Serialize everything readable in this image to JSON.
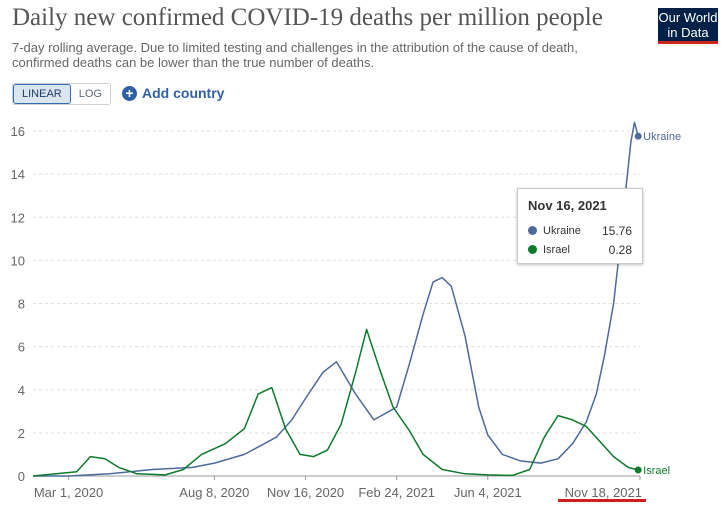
{
  "header": {
    "title": "Daily new confirmed COVID-19 deaths per million people",
    "subtitle": "7-day rolling average. Due to limited testing and challenges in the attribution of the cause of death, confirmed deaths can be lower than the true number of deaths.",
    "logo_line1": "Our World",
    "logo_line2": "in Data"
  },
  "controls": {
    "linear_label": "LINEAR",
    "log_label": "LOG",
    "active_scale": "LINEAR",
    "add_country_label": "Add country"
  },
  "tooltip": {
    "date": "Nov 16, 2021",
    "rows": [
      {
        "name": "Ukraine",
        "value": "15.76"
      },
      {
        "name": "Israel",
        "value": "0.28"
      }
    ]
  },
  "colors": {
    "ukraine": "#4c6a9c",
    "israel": "#0e7a2c",
    "highlight_underline": "#d31c1c"
  },
  "chart_data": {
    "type": "line",
    "title": "Daily new confirmed COVID-19 deaths per million people",
    "xlabel": "",
    "ylabel": "",
    "ylim": [
      0,
      16
    ],
    "yticks": [
      0,
      2,
      4,
      6,
      8,
      10,
      12,
      14,
      16
    ],
    "x_tick_labels": [
      "Mar 1, 2020",
      "Aug 8, 2020",
      "Nov 16, 2020",
      "Feb 24, 2021",
      "Jun 4, 2021",
      "Nov 18, 2021"
    ],
    "x_tick_dates": [
      "2020-03-01",
      "2020-08-08",
      "2020-11-16",
      "2021-02-24",
      "2021-06-04",
      "2021-11-18"
    ],
    "x_range": [
      "2020-01-22",
      "2021-11-18"
    ],
    "grid": "horizontal dashed",
    "legend": "line end labels",
    "series": [
      {
        "name": "Ukraine",
        "color": "#4c6a9c",
        "x": [
          "2020-01-22",
          "2020-03-01",
          "2020-04-15",
          "2020-06-01",
          "2020-07-15",
          "2020-08-08",
          "2020-09-10",
          "2020-10-15",
          "2020-11-01",
          "2020-11-16",
          "2020-12-05",
          "2020-12-20",
          "2021-01-10",
          "2021-01-30",
          "2021-02-24",
          "2021-03-10",
          "2021-03-25",
          "2021-04-05",
          "2021-04-15",
          "2021-04-25",
          "2021-05-10",
          "2021-05-25",
          "2021-06-04",
          "2021-06-20",
          "2021-07-10",
          "2021-08-01",
          "2021-08-20",
          "2021-09-05",
          "2021-09-20",
          "2021-10-01",
          "2021-10-10",
          "2021-10-20",
          "2021-10-28",
          "2021-11-03",
          "2021-11-08",
          "2021-11-12",
          "2021-11-16"
        ],
        "values": [
          0,
          0,
          0.1,
          0.3,
          0.4,
          0.6,
          1.0,
          1.8,
          2.6,
          3.6,
          4.8,
          5.3,
          3.8,
          2.6,
          3.2,
          5.2,
          7.5,
          9.0,
          9.2,
          8.8,
          6.5,
          3.2,
          1.9,
          1.0,
          0.7,
          0.6,
          0.8,
          1.5,
          2.5,
          3.8,
          5.6,
          8.0,
          11.0,
          13.5,
          15.5,
          16.4,
          15.76
        ]
      },
      {
        "name": "Israel",
        "color": "#0e7a2c",
        "x": [
          "2020-01-22",
          "2020-03-10",
          "2020-03-25",
          "2020-04-10",
          "2020-04-25",
          "2020-05-15",
          "2020-06-15",
          "2020-07-05",
          "2020-07-25",
          "2020-08-20",
          "2020-09-10",
          "2020-09-25",
          "2020-10-10",
          "2020-10-25",
          "2020-11-10",
          "2020-11-25",
          "2020-12-10",
          "2020-12-25",
          "2021-01-10",
          "2021-01-22",
          "2021-02-05",
          "2021-02-20",
          "2021-03-10",
          "2021-03-25",
          "2021-04-15",
          "2021-05-10",
          "2021-06-04",
          "2021-07-01",
          "2021-07-20",
          "2021-08-05",
          "2021-08-20",
          "2021-09-05",
          "2021-09-20",
          "2021-10-05",
          "2021-10-20",
          "2021-11-05",
          "2021-11-16"
        ],
        "values": [
          0,
          0.2,
          0.9,
          0.8,
          0.4,
          0.1,
          0.05,
          0.3,
          1.0,
          1.5,
          2.2,
          3.8,
          4.1,
          2.2,
          1.0,
          0.9,
          1.2,
          2.4,
          4.8,
          6.8,
          5.0,
          3.2,
          2.1,
          1.0,
          0.3,
          0.1,
          0.05,
          0.03,
          0.3,
          1.8,
          2.8,
          2.6,
          2.3,
          1.6,
          0.9,
          0.4,
          0.28
        ]
      }
    ]
  }
}
